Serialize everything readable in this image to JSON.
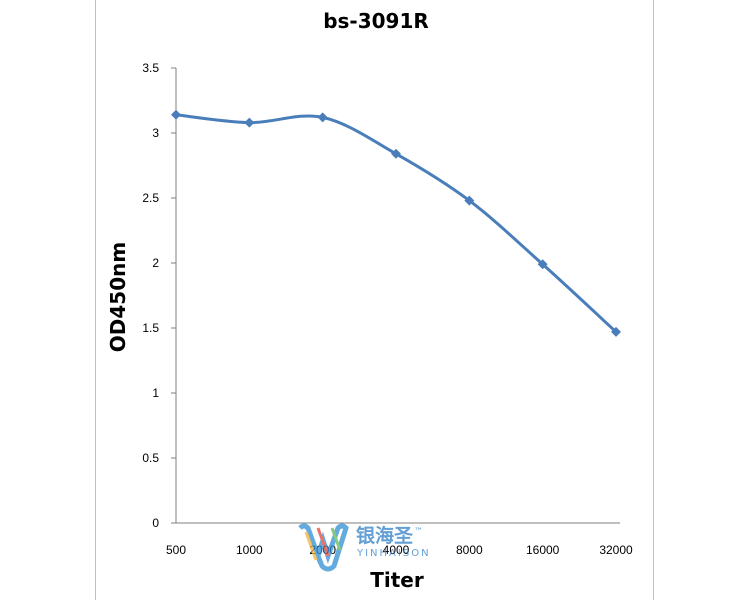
{
  "chart_data": {
    "type": "line",
    "title": "bs-3091R",
    "xlabel": "Titer",
    "ylabel": "OD450nm",
    "categories": [
      "500",
      "1000",
      "2000",
      "4000",
      "8000",
      "16000",
      "32000"
    ],
    "series": [
      {
        "values": [
          3.14,
          3.08,
          3.12,
          2.84,
          2.48,
          1.99,
          1.47
        ]
      }
    ],
    "ylim": [
      0,
      3.5
    ],
    "yticks": [
      "0",
      "0.5",
      "1",
      "1.5",
      "2",
      "2.5",
      "3",
      "3.5"
    ],
    "grid": false,
    "legend": "none",
    "line_color": "#4a7ebb",
    "marker": "diamond"
  },
  "watermark": {
    "chinese": "银海圣",
    "latin": "YINHAISON",
    "tm": "™"
  }
}
